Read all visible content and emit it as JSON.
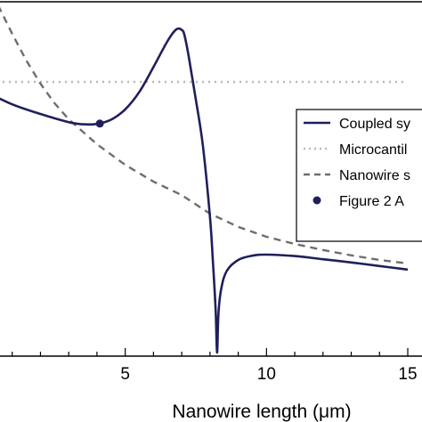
{
  "chart_data": {
    "type": "line",
    "xlabel": "Nanowire length (μm)",
    "xlim": [
      0,
      15
    ],
    "ylim": [
      0,
      1
    ],
    "x_ticks": [
      5,
      10,
      15
    ],
    "x_tick_labels": [
      "5",
      "10",
      "15"
    ],
    "grid": false,
    "legend_position": "right",
    "legend": [
      {
        "label": "Coupled sy",
        "style": "solid",
        "color": "#1f1f5c"
      },
      {
        "label": "Microcantil",
        "style": "dotted",
        "color": "#b8b8b8"
      },
      {
        "label": "Nanowire s",
        "style": "dashed",
        "color": "#6e6e6e"
      },
      {
        "label": "Figure 2 A",
        "style": "marker",
        "color": "#1f1f5c"
      }
    ],
    "series": [
      {
        "name": "Coupled sy",
        "style": "solid",
        "color": "#1f1f5c",
        "x": [
          0,
          1,
          2,
          3,
          3.5,
          4,
          4.5,
          5,
          5.5,
          6,
          6.5,
          6.8,
          7.0,
          7.1,
          7.25,
          7.5,
          7.75,
          8.0,
          8.1,
          8.2,
          8.25,
          8.3,
          8.4,
          8.6,
          9.0,
          9.5,
          10,
          11,
          12,
          13,
          14,
          15
        ],
        "y": [
          0.745,
          0.707,
          0.68,
          0.657,
          0.651,
          0.652,
          0.664,
          0.693,
          0.742,
          0.812,
          0.885,
          0.917,
          0.916,
          0.9,
          0.84,
          0.72,
          0.59,
          0.39,
          0.27,
          0.13,
          0.01,
          0.12,
          0.19,
          0.24,
          0.27,
          0.282,
          0.285,
          0.281,
          0.272,
          0.263,
          0.253,
          0.243
        ]
      },
      {
        "name": "Microcantil",
        "style": "dotted",
        "color": "#b8b8b8",
        "x": [
          0,
          15
        ],
        "y": [
          0.77,
          0.77
        ]
      },
      {
        "name": "Nanowire s",
        "style": "dashed",
        "color": "#6e6e6e",
        "x": [
          0.5,
          1,
          1.5,
          2,
          2.5,
          3,
          4,
          5,
          6,
          7,
          8,
          9,
          10,
          11,
          12,
          13,
          14,
          15
        ],
        "y": [
          0.985,
          0.905,
          0.83,
          0.765,
          0.71,
          0.665,
          0.595,
          0.537,
          0.49,
          0.452,
          0.4,
          0.363,
          0.335,
          0.315,
          0.298,
          0.283,
          0.27,
          0.26
        ]
      },
      {
        "name": "Figure 2 A",
        "style": "marker",
        "color": "#1f1f5c",
        "x": [
          4.1
        ],
        "y": [
          0.653
        ]
      }
    ]
  }
}
